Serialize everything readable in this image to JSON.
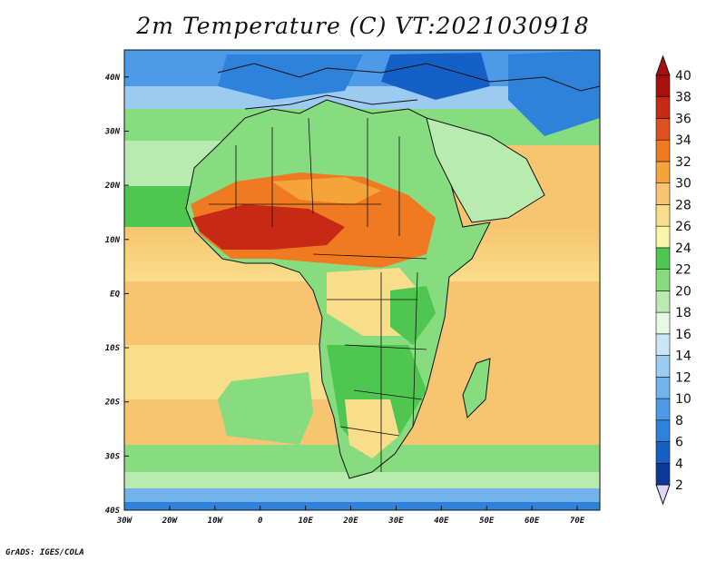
{
  "title": "2m Temperature (C) VT:2021030918",
  "footer": "GrADS: IGES/COLA",
  "map": {
    "lon_range": [
      -30,
      75
    ],
    "lat_range": [
      -40,
      45
    ],
    "x_ticks": [
      "30W",
      "20W",
      "10W",
      "0",
      "10E",
      "20E",
      "30E",
      "40E",
      "50E",
      "60E",
      "70E"
    ],
    "x_tick_values": [
      -30,
      -20,
      -10,
      0,
      10,
      20,
      30,
      40,
      50,
      60,
      70
    ],
    "y_ticks": [
      "40S",
      "30S",
      "20S",
      "10S",
      "EQ",
      "10N",
      "20N",
      "30N",
      "40N"
    ],
    "y_tick_values": [
      -40,
      -30,
      -20,
      -10,
      0,
      10,
      20,
      30,
      40
    ]
  },
  "colorbar": {
    "labels": [
      "2",
      "4",
      "6",
      "8",
      "10",
      "12",
      "14",
      "16",
      "18",
      "20",
      "22",
      "24",
      "26",
      "28",
      "30",
      "32",
      "34",
      "36",
      "38",
      "40"
    ],
    "colors": [
      "#0a1870",
      "#0d3a9a",
      "#1560c4",
      "#2e82db",
      "#4d9be6",
      "#72b3ec",
      "#9ccbf2",
      "#c8e6f8",
      "#e7f8e4",
      "#b9ebb0",
      "#86dc7e",
      "#4fc64f",
      "#f9f6a8",
      "#f8dd8a",
      "#f7c56f",
      "#f5a43a",
      "#f07a22",
      "#e0501e",
      "#c72a14",
      "#a8100c"
    ]
  }
}
